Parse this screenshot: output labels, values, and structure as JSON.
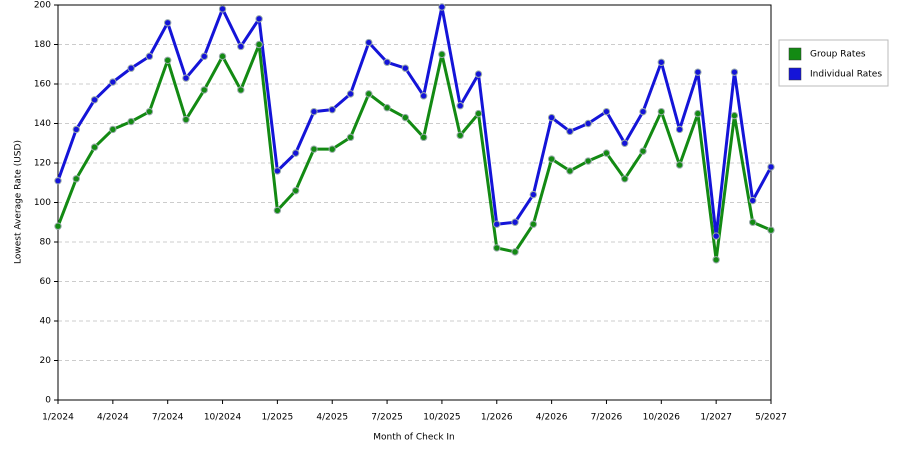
{
  "chart_data": {
    "type": "line",
    "x_label": "Month of Check In",
    "y_label": "Lowest Average Rate (USD)",
    "categories": [
      "1/2024",
      null,
      null,
      "4/2024",
      null,
      null,
      "7/2024",
      null,
      null,
      "10/2024",
      null,
      null,
      "1/2025",
      null,
      null,
      "4/2025",
      null,
      null,
      "7/2025",
      null,
      null,
      "10/2025",
      null,
      null,
      "1/2026",
      null,
      null,
      "4/2026",
      null,
      null,
      "7/2026",
      null,
      null,
      "10/2026",
      null,
      null,
      "1/2027",
      null,
      null,
      "5/2027"
    ],
    "series": [
      {
        "name": "Group Rates",
        "color": "#138a13",
        "values": [
          88,
          112,
          128,
          137,
          141,
          146,
          172,
          142,
          157,
          174,
          157,
          180,
          96,
          106,
          127,
          127,
          133,
          155,
          148,
          143,
          133,
          175,
          134,
          145,
          77,
          75,
          89,
          122,
          116,
          121,
          125,
          112,
          126,
          146,
          119,
          145,
          71,
          144,
          90,
          86
        ]
      },
      {
        "name": "Individual Rates",
        "color": "#1414d8",
        "values": [
          111,
          137,
          152,
          161,
          168,
          174,
          191,
          163,
          174,
          198,
          179,
          193,
          116,
          125,
          146,
          147,
          155,
          181,
          171,
          168,
          154,
          199,
          149,
          165,
          89,
          90,
          104,
          143,
          136,
          140,
          146,
          130,
          146,
          171,
          137,
          166,
          83,
          166,
          101,
          118
        ]
      }
    ],
    "ylim": [
      0,
      200
    ],
    "yticks": [
      0,
      20,
      40,
      60,
      80,
      100,
      120,
      140,
      160,
      180,
      200
    ],
    "grid": true,
    "legend": "right"
  }
}
